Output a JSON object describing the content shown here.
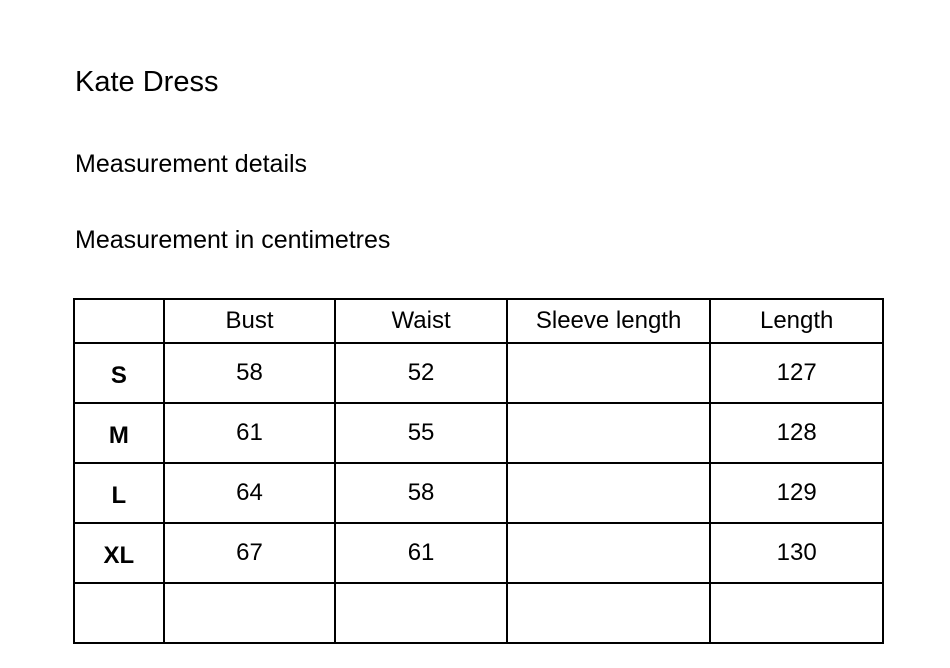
{
  "title": "Kate Dress",
  "subtitle": "Measurement details",
  "unit_note": "Measurement in centimetres",
  "table": {
    "headers": [
      "",
      "Bust",
      "Waist",
      "Sleeve length",
      "Length"
    ],
    "rows": [
      [
        "S",
        "58",
        "52",
        "",
        "127"
      ],
      [
        "M",
        "61",
        "55",
        "",
        "128"
      ],
      [
        "L",
        "64",
        "58",
        "",
        "129"
      ],
      [
        "XL",
        "67",
        "61",
        "",
        "130"
      ],
      [
        "",
        "",
        "",
        "",
        ""
      ]
    ]
  }
}
